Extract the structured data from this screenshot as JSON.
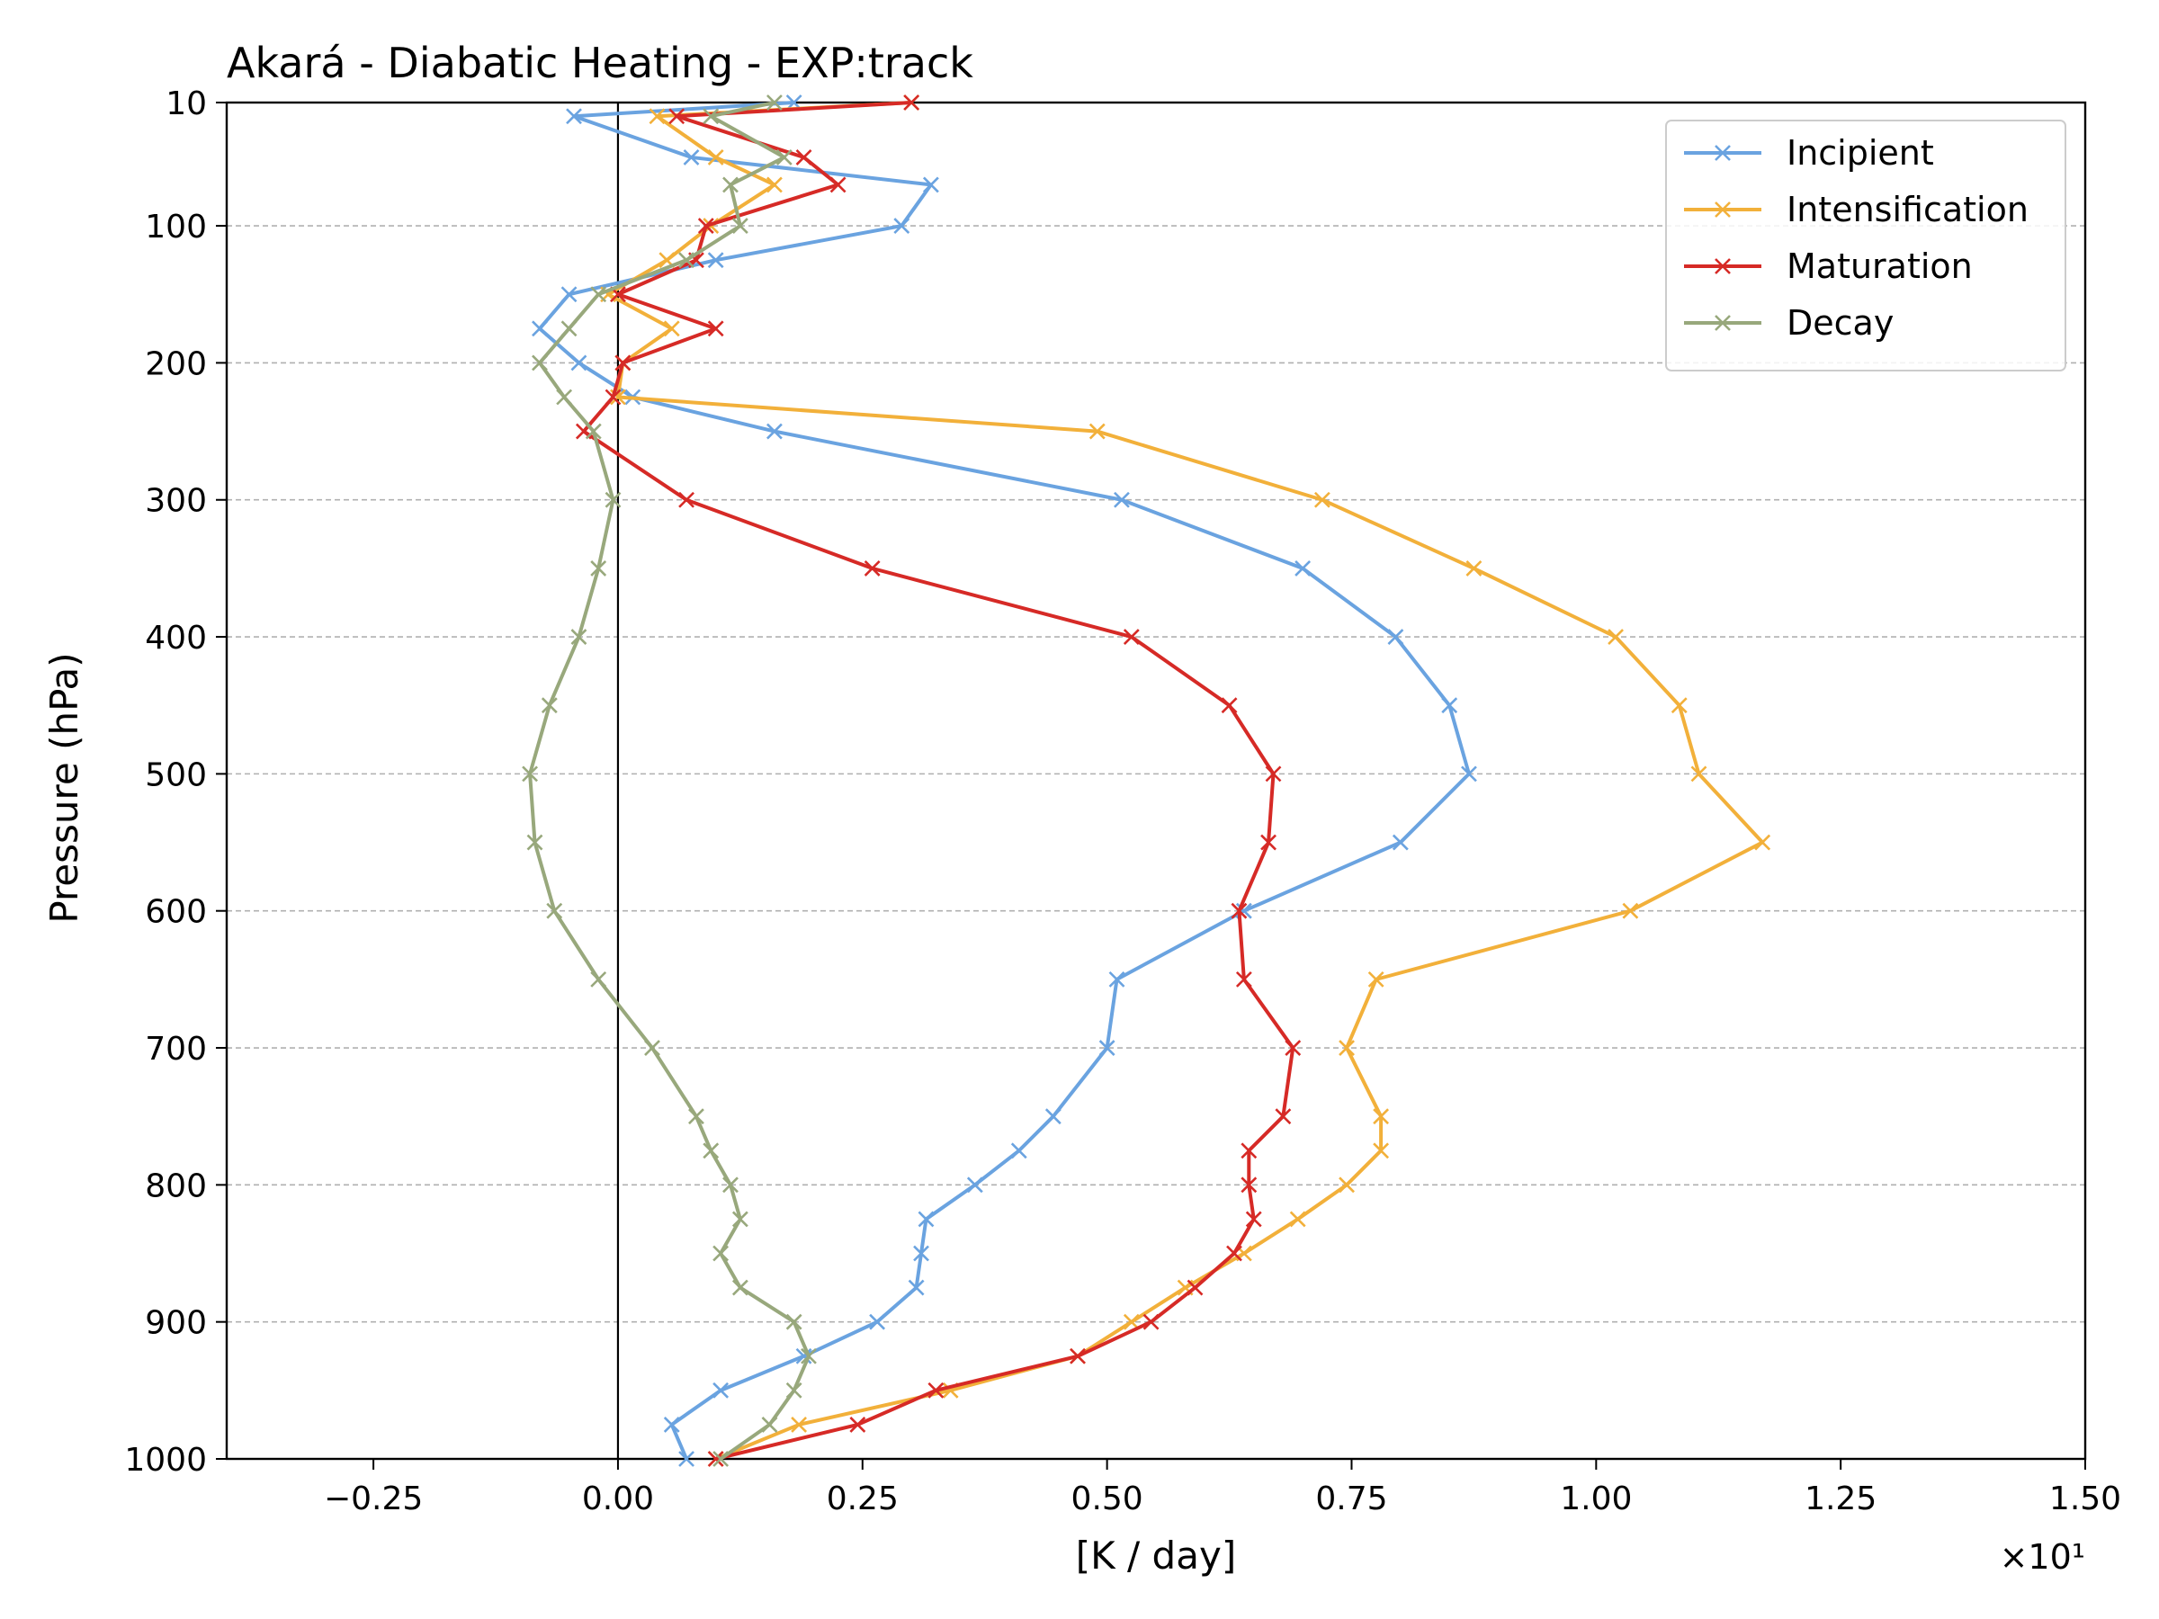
{
  "chart_data": {
    "type": "line",
    "title": "Akará - Diabatic Heating - EXP:track",
    "xlabel": "[K / day]",
    "ylabel": "Pressure (hPa)",
    "x_offset_label": "×10¹",
    "xlim": [
      -0.4,
      1.5
    ],
    "ylim": [
      1000,
      10
    ],
    "x_ticks": [
      -0.25,
      0.0,
      0.25,
      0.5,
      0.75,
      1.0,
      1.25,
      1.5
    ],
    "x_tick_labels": [
      "−0.25",
      "0.00",
      "0.25",
      "0.50",
      "0.75",
      "1.00",
      "1.25",
      "1.50"
    ],
    "y_ticks": [
      10,
      100,
      200,
      300,
      400,
      500,
      600,
      700,
      800,
      900,
      1000
    ],
    "y_tick_labels": [
      "10",
      "100",
      "200",
      "300",
      "400",
      "500",
      "600",
      "700",
      "800",
      "900",
      "1000"
    ],
    "grid": "horizontal dashed",
    "zero_line": 0,
    "legend_position": "top-right",
    "pressure_levels": [
      10,
      20,
      50,
      70,
      100,
      125,
      150,
      175,
      200,
      225,
      250,
      300,
      350,
      400,
      450,
      500,
      550,
      600,
      650,
      700,
      750,
      775,
      800,
      825,
      850,
      875,
      900,
      925,
      950,
      975,
      1000
    ],
    "series": [
      {
        "name": "Incipient",
        "color": "#6aa3e0",
        "values": [
          0.18,
          -0.045,
          0.075,
          0.32,
          0.29,
          0.1,
          -0.05,
          -0.08,
          -0.04,
          0.015,
          0.16,
          0.515,
          0.7,
          0.795,
          0.85,
          0.87,
          0.8,
          0.64,
          0.51,
          0.5,
          0.445,
          0.41,
          0.365,
          0.315,
          0.31,
          0.305,
          0.265,
          0.19,
          0.105,
          0.055,
          0.07
        ]
      },
      {
        "name": "Intensification",
        "color": "#f2b03a",
        "values": [
          0.3,
          0.04,
          0.1,
          0.16,
          0.095,
          0.05,
          -0.01,
          0.055,
          0.005,
          0.0,
          0.49,
          0.72,
          0.875,
          1.02,
          1.085,
          1.105,
          1.17,
          1.035,
          0.775,
          0.745,
          0.78,
          0.78,
          0.745,
          0.695,
          0.64,
          0.58,
          0.525,
          0.47,
          0.34,
          0.185,
          0.1
        ]
      },
      {
        "name": "Maturation",
        "color": "#d62a26",
        "values": [
          0.3,
          0.06,
          0.19,
          0.225,
          0.09,
          0.08,
          0.0,
          0.1,
          0.005,
          -0.005,
          -0.035,
          0.07,
          0.26,
          0.525,
          0.625,
          0.67,
          0.665,
          0.635,
          0.64,
          0.69,
          0.68,
          0.645,
          0.645,
          0.65,
          0.63,
          0.59,
          0.545,
          0.47,
          0.325,
          0.245,
          0.1
        ]
      },
      {
        "name": "Decay",
        "color": "#98a87c",
        "values": [
          0.16,
          0.095,
          0.17,
          0.115,
          0.125,
          0.07,
          -0.02,
          -0.05,
          -0.08,
          -0.055,
          -0.025,
          -0.005,
          -0.02,
          -0.04,
          -0.07,
          -0.09,
          -0.085,
          -0.065,
          -0.02,
          0.035,
          0.08,
          0.095,
          0.115,
          0.125,
          0.105,
          0.125,
          0.18,
          0.195,
          0.18,
          0.155,
          0.105
        ]
      }
    ]
  }
}
